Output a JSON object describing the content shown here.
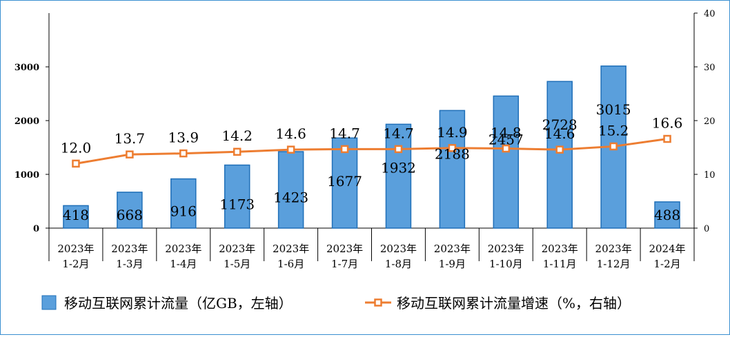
{
  "chart_data": {
    "type": "bar+line",
    "categories": [
      [
        "2023年",
        "1-2月"
      ],
      [
        "2023年",
        "1-3月"
      ],
      [
        "2023年",
        "1-4月"
      ],
      [
        "2023年",
        "1-5月"
      ],
      [
        "2023年",
        "1-6月"
      ],
      [
        "2023年",
        "1-7月"
      ],
      [
        "2023年",
        "1-8月"
      ],
      [
        "2023年",
        "1-9月"
      ],
      [
        "2023年",
        "1-10月"
      ],
      [
        "2023年",
        "1-11月"
      ],
      [
        "2023年",
        "1-12月"
      ],
      [
        "2024年",
        "1-2月"
      ]
    ],
    "series": [
      {
        "name": "移动互联网累计流量（亿GB，左轴）",
        "type": "bar",
        "axis": "left",
        "values": [
          418,
          668,
          916,
          1173,
          1423,
          1677,
          1932,
          2188,
          2457,
          2728,
          3015,
          488
        ],
        "labels": [
          "418",
          "668",
          "916",
          "1173",
          "1423",
          "1677",
          "1932",
          "2188",
          "2457",
          "2728",
          "3015",
          "488"
        ],
        "color": "#5a9fdc"
      },
      {
        "name": "移动互联网累计流量增速（%，右轴）",
        "type": "line",
        "axis": "right",
        "values": [
          12.0,
          13.7,
          13.9,
          14.2,
          14.6,
          14.7,
          14.7,
          14.9,
          14.8,
          14.6,
          15.2,
          16.6
        ],
        "labels": [
          "12.0",
          "13.7",
          "13.9",
          "14.2",
          "14.6",
          "14.7",
          "14.7",
          "14.9",
          "14.8",
          "14.6",
          "15.2",
          "16.6"
        ],
        "color": "#ed7d31"
      }
    ],
    "left_axis": {
      "range": [
        0,
        4000
      ],
      "ticks": [
        "0",
        "1000",
        "2000",
        "3000"
      ],
      "tick_values": [
        0,
        1000,
        2000,
        3000
      ]
    },
    "right_axis": {
      "range": [
        0,
        40
      ],
      "ticks": [
        "0",
        "10",
        "20",
        "30",
        "40"
      ],
      "tick_values": [
        0,
        10,
        20,
        30,
        40
      ]
    },
    "legend": {
      "position": "bottom"
    },
    "grid": false
  }
}
